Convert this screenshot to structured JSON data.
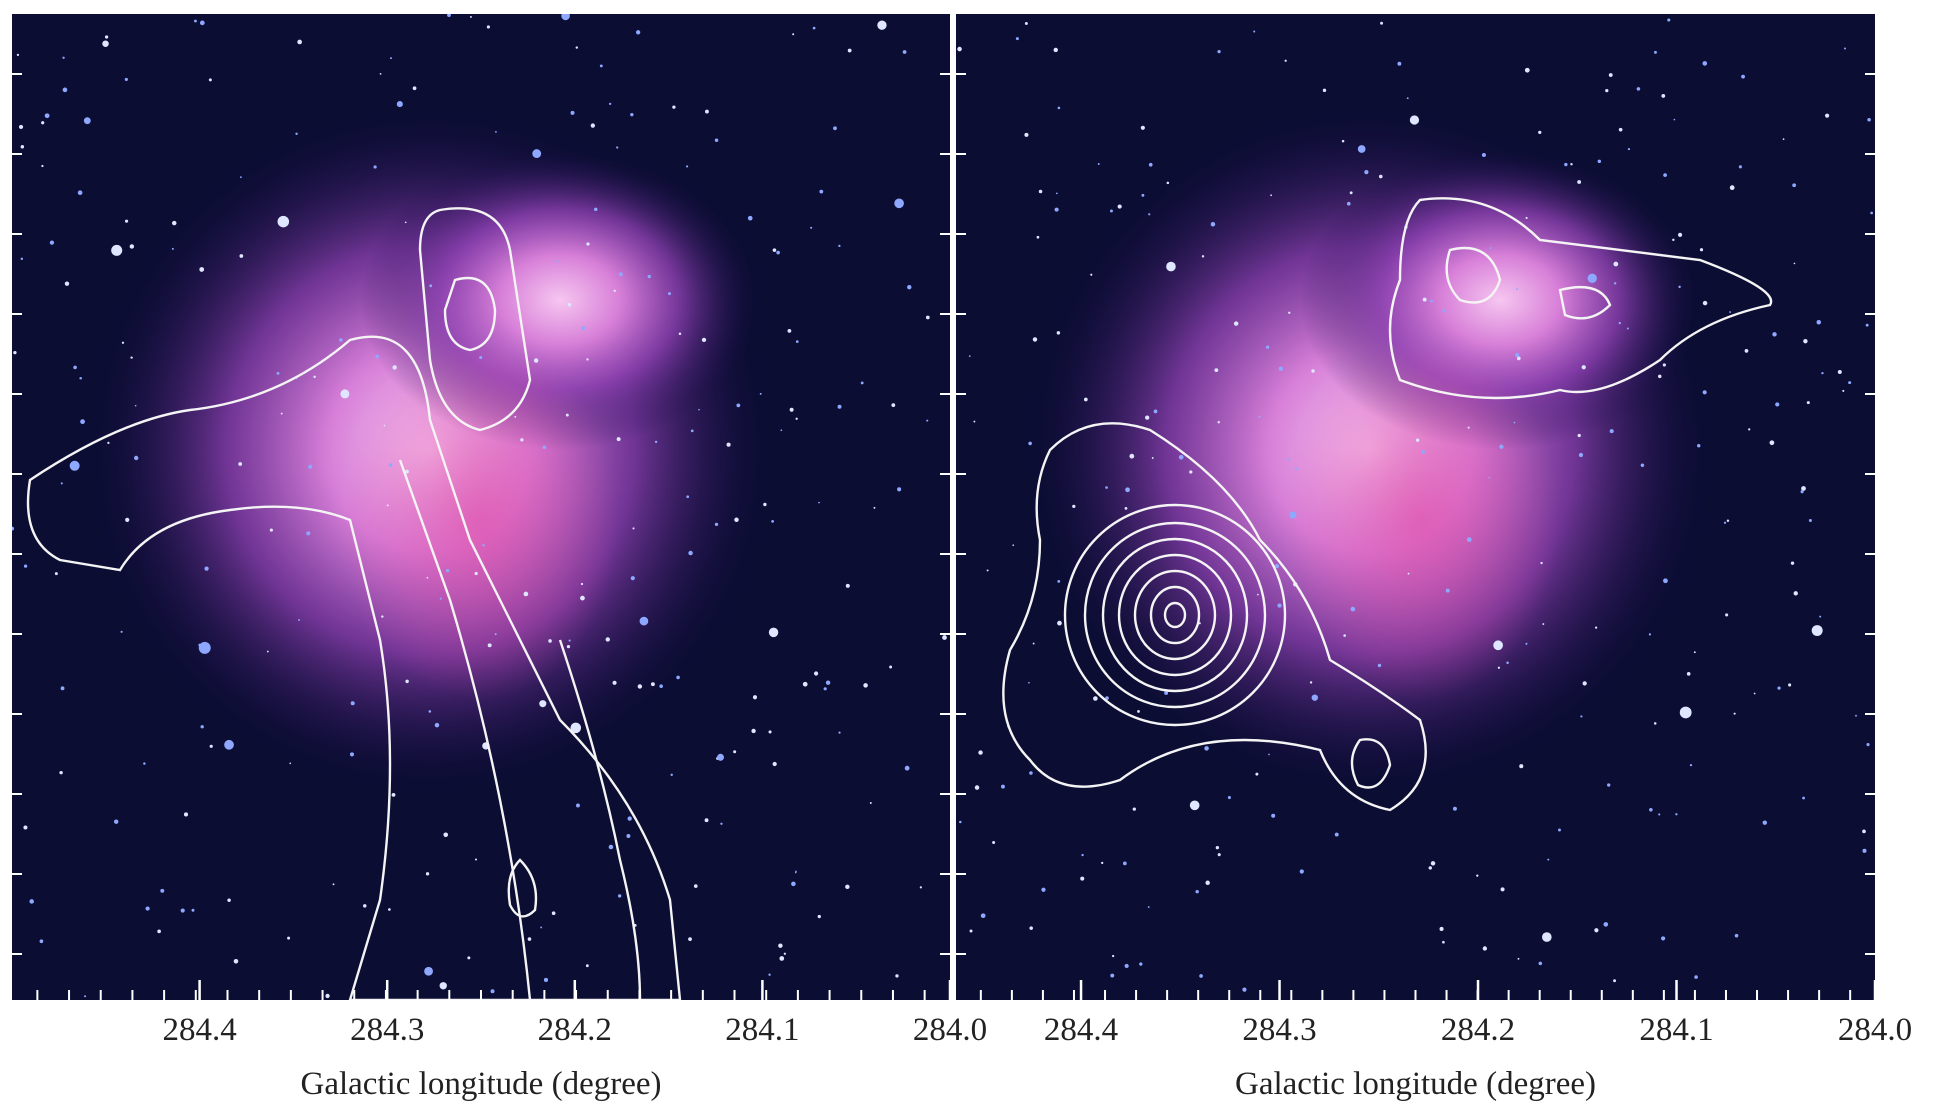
{
  "chart_data": [
    {
      "type": "image",
      "xlabel": "Galactic longitude (degree)",
      "xlim": [
        284.5,
        284.0
      ],
      "xticks": [
        284.4,
        284.3,
        284.2,
        284.1,
        {
          "value": 284.0,
          "label": "284.0"
        }
      ]
    },
    {
      "type": "image",
      "xlabel": "Galactic longitude (degree)",
      "xlim": [
        284.463,
        284.0
      ],
      "xticks": [
        284.4,
        284.3,
        284.2,
        284.1,
        {
          "value": 284.0,
          "label": "284.0"
        }
      ]
    }
  ]
}
